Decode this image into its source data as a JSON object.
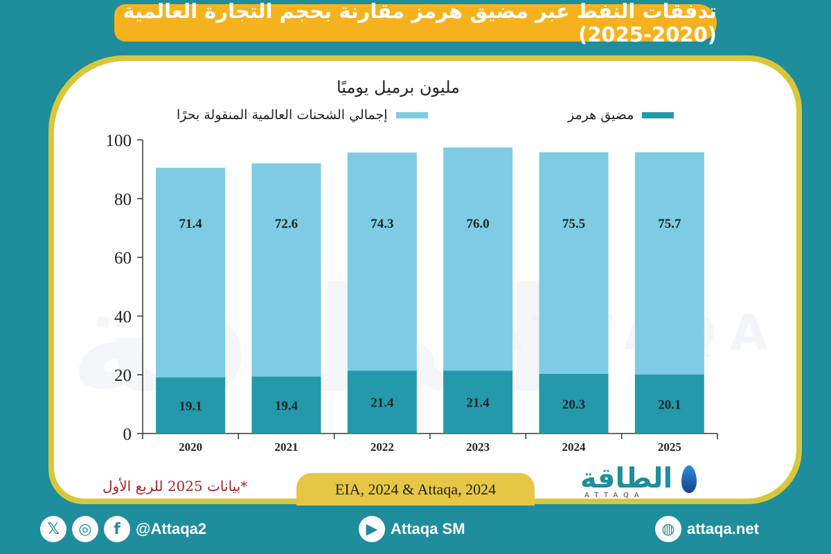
{
  "title": "تدفقات النفط عبر مضيق هرمز مقارنة بحجم التجارة العالمية (2020-2025)",
  "unit_label": "مليون برميل يوميًا",
  "note": "*بيانات 2025 للربع الأول",
  "source": "EIA, 2024 & Attaqa, 2024",
  "logo": {
    "name": "الطاقة",
    "sub": "ATTAQA"
  },
  "watermark": {
    "text": "الطاقة",
    "sub": "ATTAQA"
  },
  "footer": {
    "social_handle": "@Attaqa2",
    "youtube": "Attaqa SM",
    "website": "attaqa.net",
    "icons": [
      "x-icon",
      "instagram-icon",
      "facebook-icon",
      "youtube-icon",
      "globe-icon"
    ]
  },
  "colors": {
    "background": "#1e8d9c",
    "title_bg": "#f5b21e",
    "card_border": "#d8c73a",
    "hormuz": "#2499ac",
    "global": "#7ecbe4",
    "note": "#a0232b",
    "source_bg": "#e5c745"
  },
  "chart_data": {
    "type": "bar",
    "stacked": true,
    "categories": [
      "2020",
      "2021",
      "2022",
      "2023",
      "2024",
      "2025"
    ],
    "series": [
      {
        "name": "مضيق هرمز",
        "values": [
          19.1,
          19.4,
          21.4,
          21.4,
          20.3,
          20.1
        ],
        "labels": [
          "19.1",
          "19.4",
          "21.4",
          "21.4",
          "20.3",
          "20.1"
        ],
        "color": "#2499ac"
      },
      {
        "name": "إجمالي الشحنات العالمية المنقولة بحرًا",
        "values": [
          71.4,
          72.6,
          74.3,
          76.0,
          75.5,
          75.7
        ],
        "labels": [
          "71.4",
          "72.6",
          "74.3",
          "76.0",
          "75.5",
          "75.7"
        ],
        "color": "#7ecbe4"
      }
    ],
    "ylim": [
      0,
      100
    ],
    "yticks": [
      0,
      20,
      40,
      60,
      80,
      100
    ],
    "ylabel": "مليون برميل يوميًا",
    "legend_position": "top",
    "grid": false
  }
}
